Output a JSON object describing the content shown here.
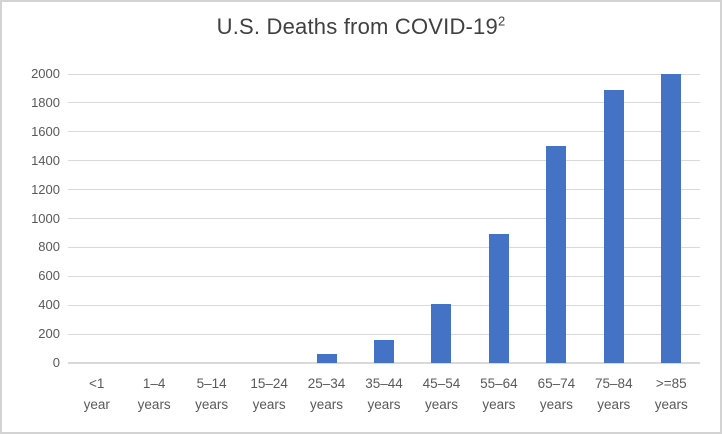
{
  "title": {
    "main": "U.S. Deaths from COVID-19",
    "superscript": "2"
  },
  "colors": {
    "bar": "#4472c4",
    "gridline": "#d9d9d9",
    "axis_text": "#595959",
    "title_text": "#404040",
    "frame_border": "#d3d3d3",
    "background": "#ffffff"
  },
  "chart_data": {
    "type": "bar",
    "title": "U.S. Deaths from COVID-19²",
    "categories": [
      {
        "line1": "<1",
        "line2": "year"
      },
      {
        "line1": "1–4",
        "line2": "years"
      },
      {
        "line1": "5–14",
        "line2": "years"
      },
      {
        "line1": "15–24",
        "line2": "years"
      },
      {
        "line1": "25–34",
        "line2": "years"
      },
      {
        "line1": "35–44",
        "line2": "years"
      },
      {
        "line1": "45–54",
        "line2": "years"
      },
      {
        "line1": "55–64",
        "line2": "years"
      },
      {
        "line1": "65–74",
        "line2": "years"
      },
      {
        "line1": "75–84",
        "line2": "years"
      },
      {
        "line1": ">=85",
        "line2": "years"
      }
    ],
    "values": [
      0,
      0,
      0,
      0,
      65,
      160,
      405,
      890,
      1500,
      1890,
      2000
    ],
    "xlabel": "",
    "ylabel": "",
    "ylim": [
      0,
      2000
    ],
    "y_ticks": [
      0,
      200,
      400,
      600,
      800,
      1000,
      1200,
      1400,
      1600,
      1800,
      2000
    ],
    "grid": true,
    "legend": false
  }
}
